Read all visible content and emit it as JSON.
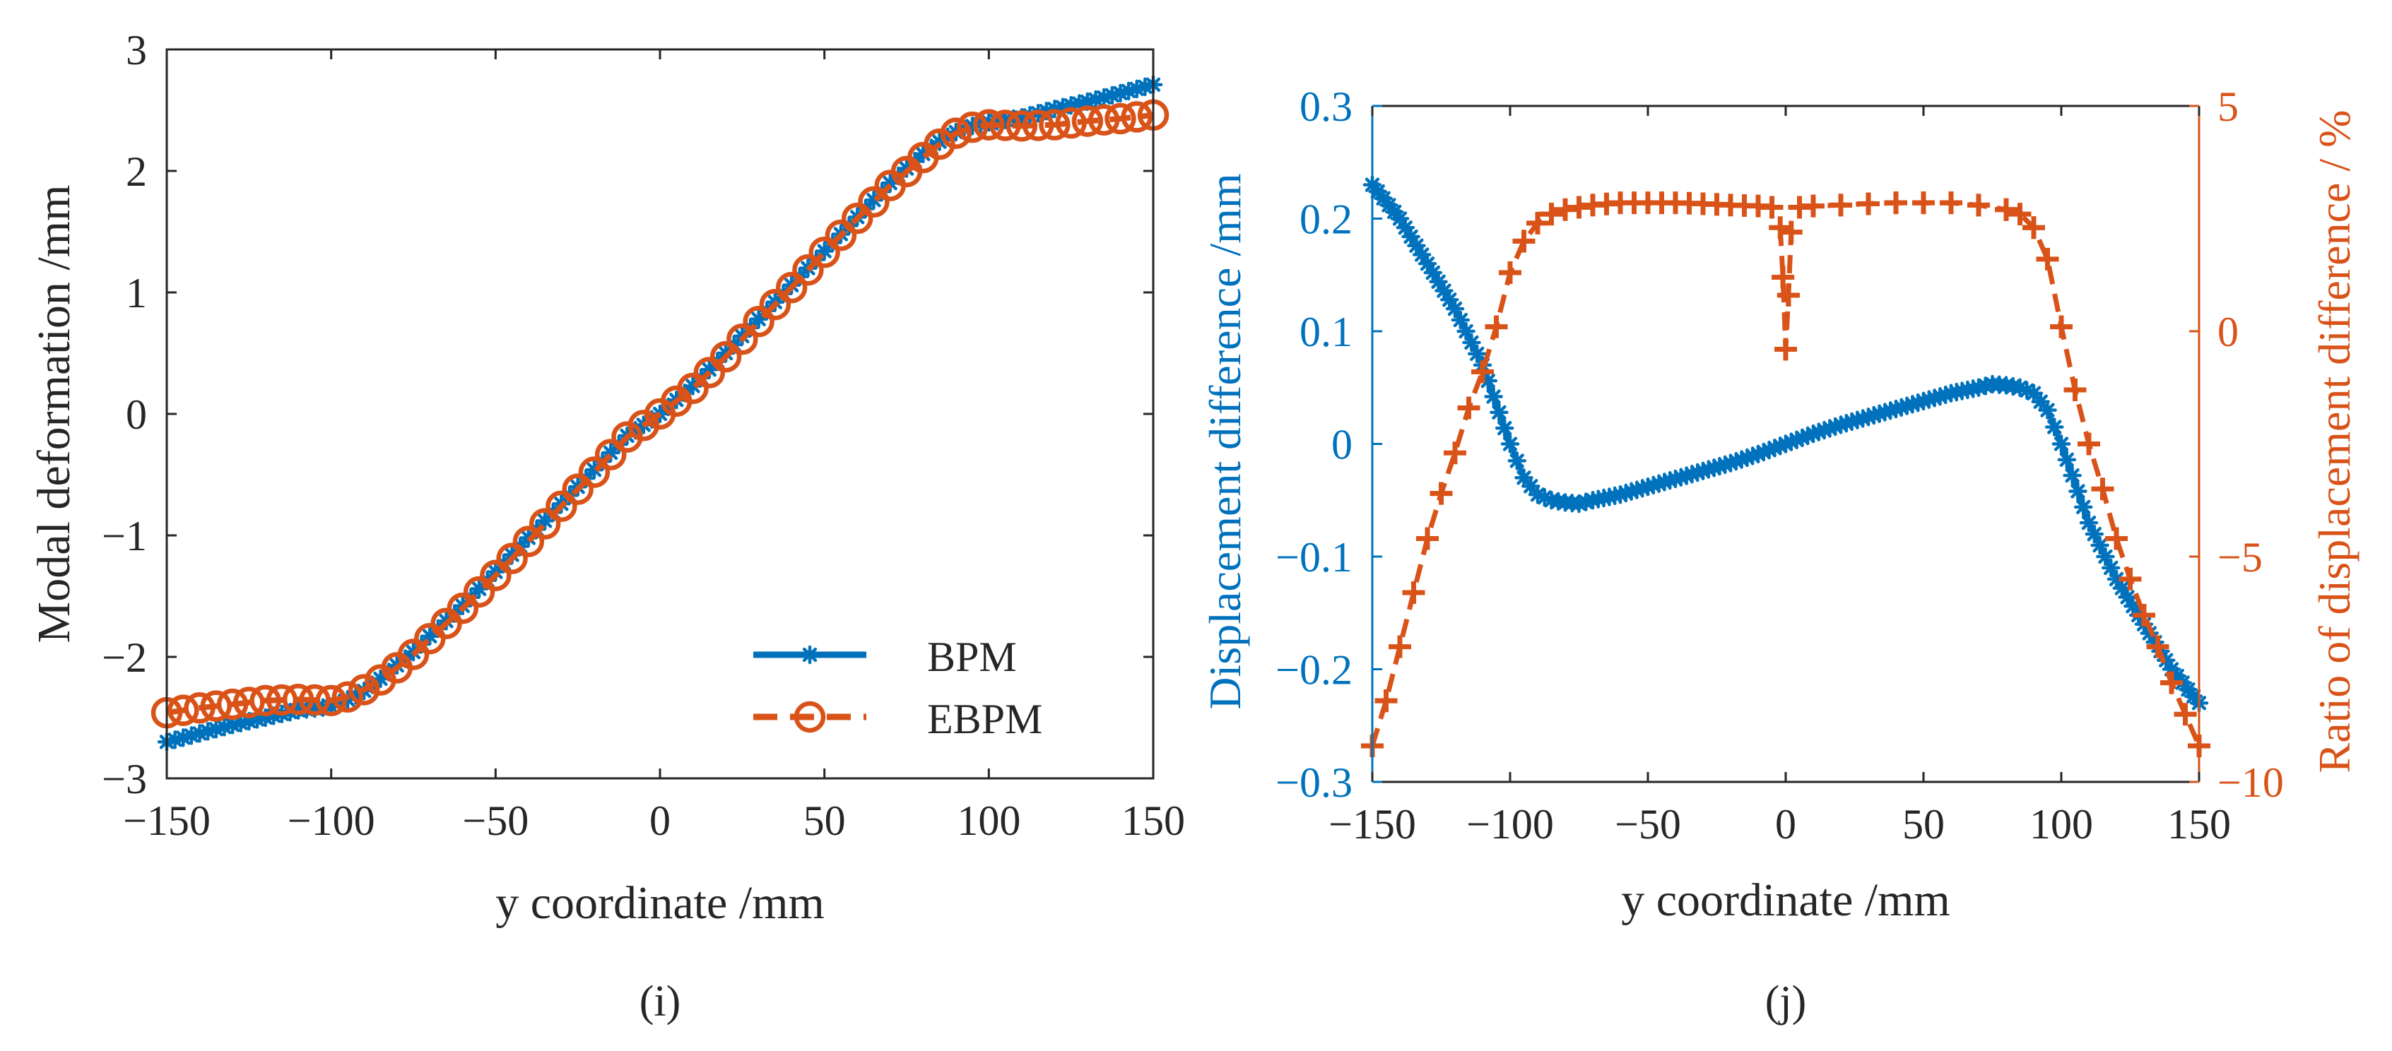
{
  "colors": {
    "blue": "#0072BD",
    "orange": "#D95319",
    "axis": "#262626"
  },
  "panels": [
    {
      "caption": "(i)"
    },
    {
      "caption": "(j)"
    }
  ],
  "chart_data": [
    {
      "type": "line",
      "title": "",
      "xlabel": "y coordinate /mm",
      "ylabel": "Modal deformation /mm",
      "xlim": [
        -150,
        150
      ],
      "ylim": [
        -3,
        3
      ],
      "xticks": [
        -150,
        -100,
        -50,
        0,
        50,
        100,
        150
      ],
      "xtick_labels": [
        "−150",
        "−100",
        "−50",
        "0",
        "50",
        "100",
        "150"
      ],
      "yticks": [
        -3,
        -2,
        -1,
        0,
        1,
        2,
        3
      ],
      "ytick_labels": [
        "−3",
        "−2",
        "−1",
        "0",
        "1",
        "2",
        "3"
      ],
      "grid": false,
      "legend": {
        "placement": "bottom-right",
        "entries": [
          "BPM",
          "EBPM"
        ]
      },
      "series": [
        {
          "name": "BPM",
          "color": "#0072BD",
          "line": "solid",
          "marker": "asterisk",
          "x": [
            -150,
            -140,
            -130,
            -120,
            -110,
            -100,
            -95,
            -90,
            -85,
            -80,
            -75,
            -70,
            -60,
            -50,
            -40,
            -30,
            -20,
            -10,
            0,
            10,
            20,
            30,
            40,
            50,
            60,
            70,
            80,
            85,
            90,
            95,
            100,
            110,
            120,
            130,
            140,
            150
          ],
          "values": [
            -2.7,
            -2.63,
            -2.56,
            -2.5,
            -2.44,
            -2.41,
            -2.35,
            -2.28,
            -2.18,
            -2.07,
            -1.96,
            -1.83,
            -1.58,
            -1.3,
            -1.02,
            -0.74,
            -0.46,
            -0.18,
            0.0,
            0.23,
            0.5,
            0.78,
            1.06,
            1.34,
            1.62,
            1.9,
            2.14,
            2.24,
            2.32,
            2.37,
            2.4,
            2.44,
            2.51,
            2.57,
            2.64,
            2.71
          ]
        },
        {
          "name": "EBPM",
          "color": "#D95319",
          "line": "dashed",
          "marker": "circle",
          "x": [
            -150,
            -140,
            -130,
            -120,
            -110,
            -100,
            -95,
            -90,
            -85,
            -80,
            -75,
            -70,
            -60,
            -50,
            -40,
            -30,
            -20,
            -10,
            0,
            10,
            20,
            30,
            40,
            50,
            60,
            70,
            80,
            85,
            90,
            95,
            100,
            110,
            120,
            130,
            140,
            150
          ],
          "values": [
            -2.46,
            -2.42,
            -2.39,
            -2.36,
            -2.35,
            -2.36,
            -2.33,
            -2.27,
            -2.19,
            -2.09,
            -1.98,
            -1.85,
            -1.6,
            -1.33,
            -1.05,
            -0.76,
            -0.48,
            -0.19,
            0.0,
            0.21,
            0.47,
            0.76,
            1.04,
            1.33,
            1.61,
            1.88,
            2.11,
            2.22,
            2.31,
            2.36,
            2.38,
            2.37,
            2.38,
            2.41,
            2.43,
            2.46
          ]
        }
      ]
    },
    {
      "type": "line",
      "title": "",
      "xlabel": "y coordinate /mm",
      "ylabel": "Displacement difference /mm",
      "ylabel_right": "Ratio of displacement difference / %",
      "xlim": [
        -150,
        150
      ],
      "ylim": [
        -0.3,
        0.3
      ],
      "ylim_right": [
        -10,
        5
      ],
      "xticks": [
        -150,
        -100,
        -50,
        0,
        50,
        100,
        150
      ],
      "xtick_labels": [
        "−150",
        "−100",
        "−50",
        "0",
        "50",
        "100",
        "150"
      ],
      "yticks": [
        -0.3,
        -0.2,
        -0.1,
        0,
        0.1,
        0.2,
        0.3
      ],
      "ytick_labels": [
        "−0.3",
        "−0.2",
        "−0.1",
        "0",
        "0.1",
        "0.2",
        "0.3"
      ],
      "yticks_right": [
        -10,
        -5,
        0,
        5
      ],
      "ytick_labels_right": [
        "−10",
        "−5",
        "0",
        "5"
      ],
      "grid": false,
      "series": [
        {
          "name": "Displacement difference",
          "axis": "left",
          "color": "#0072BD",
          "line": "solid",
          "marker": "asterisk",
          "x": [
            -150,
            -140,
            -130,
            -120,
            -110,
            -100,
            -95,
            -90,
            -85,
            -80,
            -75,
            -70,
            -60,
            -50,
            -40,
            -30,
            -20,
            -10,
            0,
            10,
            20,
            30,
            40,
            50,
            60,
            70,
            75,
            80,
            85,
            90,
            95,
            100,
            110,
            120,
            130,
            140,
            150
          ],
          "values": [
            0.23,
            0.2,
            0.16,
            0.12,
            0.07,
            0.0,
            -0.03,
            -0.045,
            -0.05,
            -0.052,
            -0.053,
            -0.05,
            -0.045,
            -0.038,
            -0.031,
            -0.024,
            -0.017,
            -0.009,
            0.0,
            0.009,
            0.017,
            0.024,
            0.031,
            0.038,
            0.045,
            0.05,
            0.053,
            0.052,
            0.05,
            0.045,
            0.03,
            0.0,
            -0.07,
            -0.12,
            -0.16,
            -0.2,
            -0.23
          ]
        },
        {
          "name": "Ratio of displacement difference",
          "axis": "right",
          "color": "#D95319",
          "line": "dashed",
          "marker": "plus",
          "segments": [
            {
              "x": [
                -150,
                -145,
                -140,
                -135,
                -130,
                -125,
                -120,
                -115,
                -110,
                -105,
                -100,
                -95,
                -90,
                -85,
                -80,
                -70,
                -60,
                -50,
                -40,
                -30,
                -20,
                -10,
                -5
              ],
              "values": [
                -9.2,
                -8.2,
                -7.0,
                -5.8,
                -4.6,
                -3.6,
                -2.7,
                -1.7,
                -0.9,
                0.1,
                1.3,
                2.0,
                2.4,
                2.6,
                2.7,
                2.8,
                2.85,
                2.85,
                2.85,
                2.83,
                2.8,
                2.78,
                2.75
              ]
            },
            {
              "x": [
                -2,
                -1,
                0,
                1,
                2
              ],
              "values": [
                2.3,
                1.2,
                -0.4,
                0.8,
                2.2
              ]
            },
            {
              "x": [
                5,
                10,
                20,
                30,
                40,
                50,
                60,
                70,
                80,
                85,
                90,
                95,
                100,
                105,
                110,
                115,
                120,
                125,
                130,
                135,
                140,
                145,
                150
              ],
              "values": [
                2.75,
                2.78,
                2.8,
                2.83,
                2.85,
                2.85,
                2.85,
                2.8,
                2.7,
                2.6,
                2.3,
                1.6,
                0.1,
                -1.3,
                -2.5,
                -3.5,
                -4.6,
                -5.5,
                -6.3,
                -7.0,
                -7.8,
                -8.5,
                -9.2
              ]
            }
          ]
        }
      ]
    }
  ]
}
